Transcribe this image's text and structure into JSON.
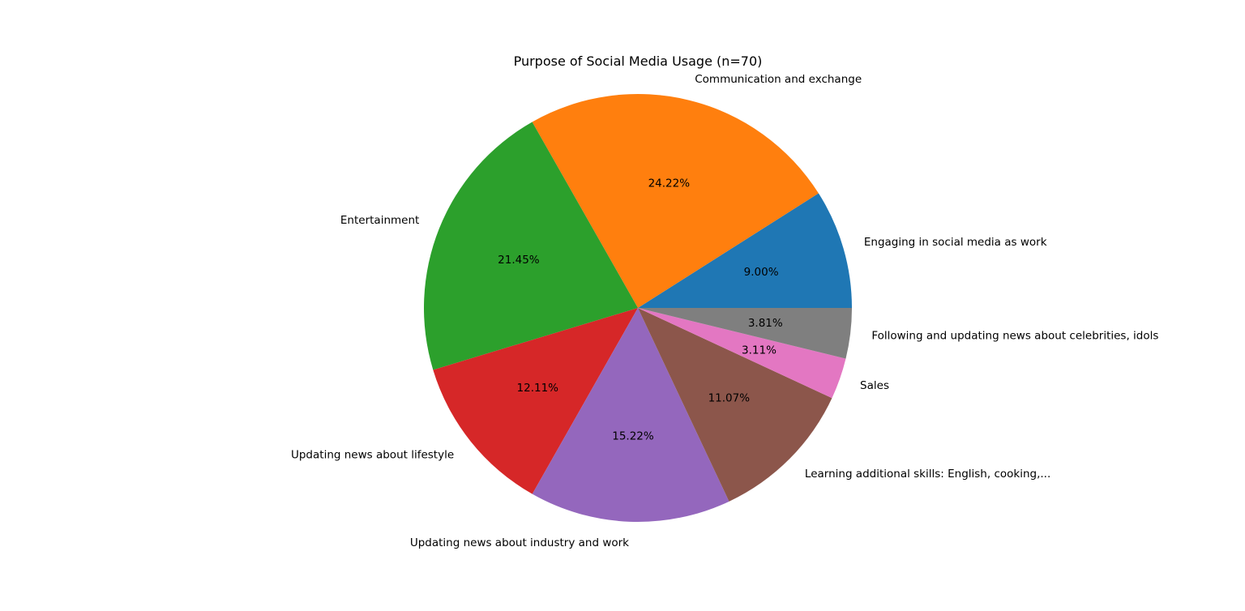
{
  "chart_data": {
    "type": "pie",
    "title": "Purpose of Social Media Usage (n=70)",
    "start_angle_deg": 0,
    "direction": "counterclockwise",
    "slices": [
      {
        "label": "Engaging in social media as work",
        "value": 9.0,
        "pct_label": "9.00%",
        "color": "#1f77b4"
      },
      {
        "label": "Communication and exchange",
        "value": 24.22,
        "pct_label": "24.22%",
        "color": "#ff7f0e"
      },
      {
        "label": "Entertainment",
        "value": 21.45,
        "pct_label": "21.45%",
        "color": "#2ca02c"
      },
      {
        "label": "Updating news about lifestyle",
        "value": 12.11,
        "pct_label": "12.11%",
        "color": "#d62728"
      },
      {
        "label": "Updating news about industry and work",
        "value": 15.22,
        "pct_label": "15.22%",
        "color": "#9467bd"
      },
      {
        "label": "Learning additional skills: English, cooking,...",
        "value": 11.07,
        "pct_label": "11.07%",
        "color": "#8c564b"
      },
      {
        "label": "Sales",
        "value": 3.11,
        "pct_label": "3.11%",
        "color": "#e377c2"
      },
      {
        "label": "Following and updating news about celebrities, idols",
        "value": 3.81,
        "pct_label": "3.81%",
        "color": "#7f7f7f"
      }
    ]
  }
}
